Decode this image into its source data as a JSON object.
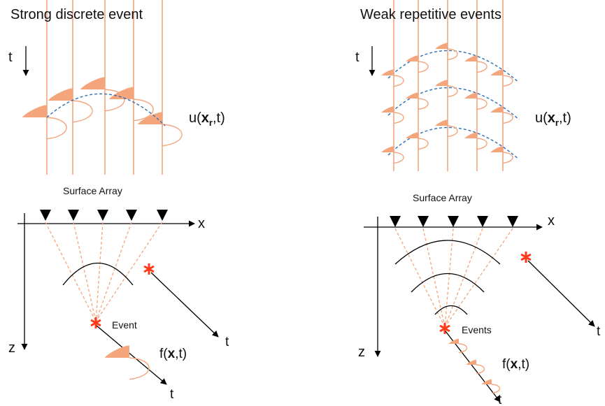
{
  "panels": [
    {
      "title": "Strong discrete event",
      "time_axis": "t",
      "trace_label": {
        "prefix": "u(",
        "bold": "x",
        "sub": "r",
        "suffix": ",t)"
      },
      "array_label": "Surface Array",
      "x_axis": "x",
      "z_axis": "z",
      "event_label": "Event",
      "source_label": {
        "prefix": "f(",
        "bold": "x",
        "suffix": ",t)"
      },
      "ray_time_labels": [
        "t",
        "t"
      ]
    },
    {
      "title": "Weak repetitive events",
      "time_axis": "t",
      "trace_label": {
        "prefix": "u(",
        "bold": "x",
        "sub": "r",
        "suffix": ",t)"
      },
      "array_label": "Surface Array",
      "x_axis": "x",
      "z_axis": "z",
      "event_label": "Events",
      "source_label": {
        "prefix": "f(",
        "bold": "x",
        "suffix": ",t)"
      },
      "ray_time_labels": [
        "t",
        "t"
      ]
    }
  ]
}
